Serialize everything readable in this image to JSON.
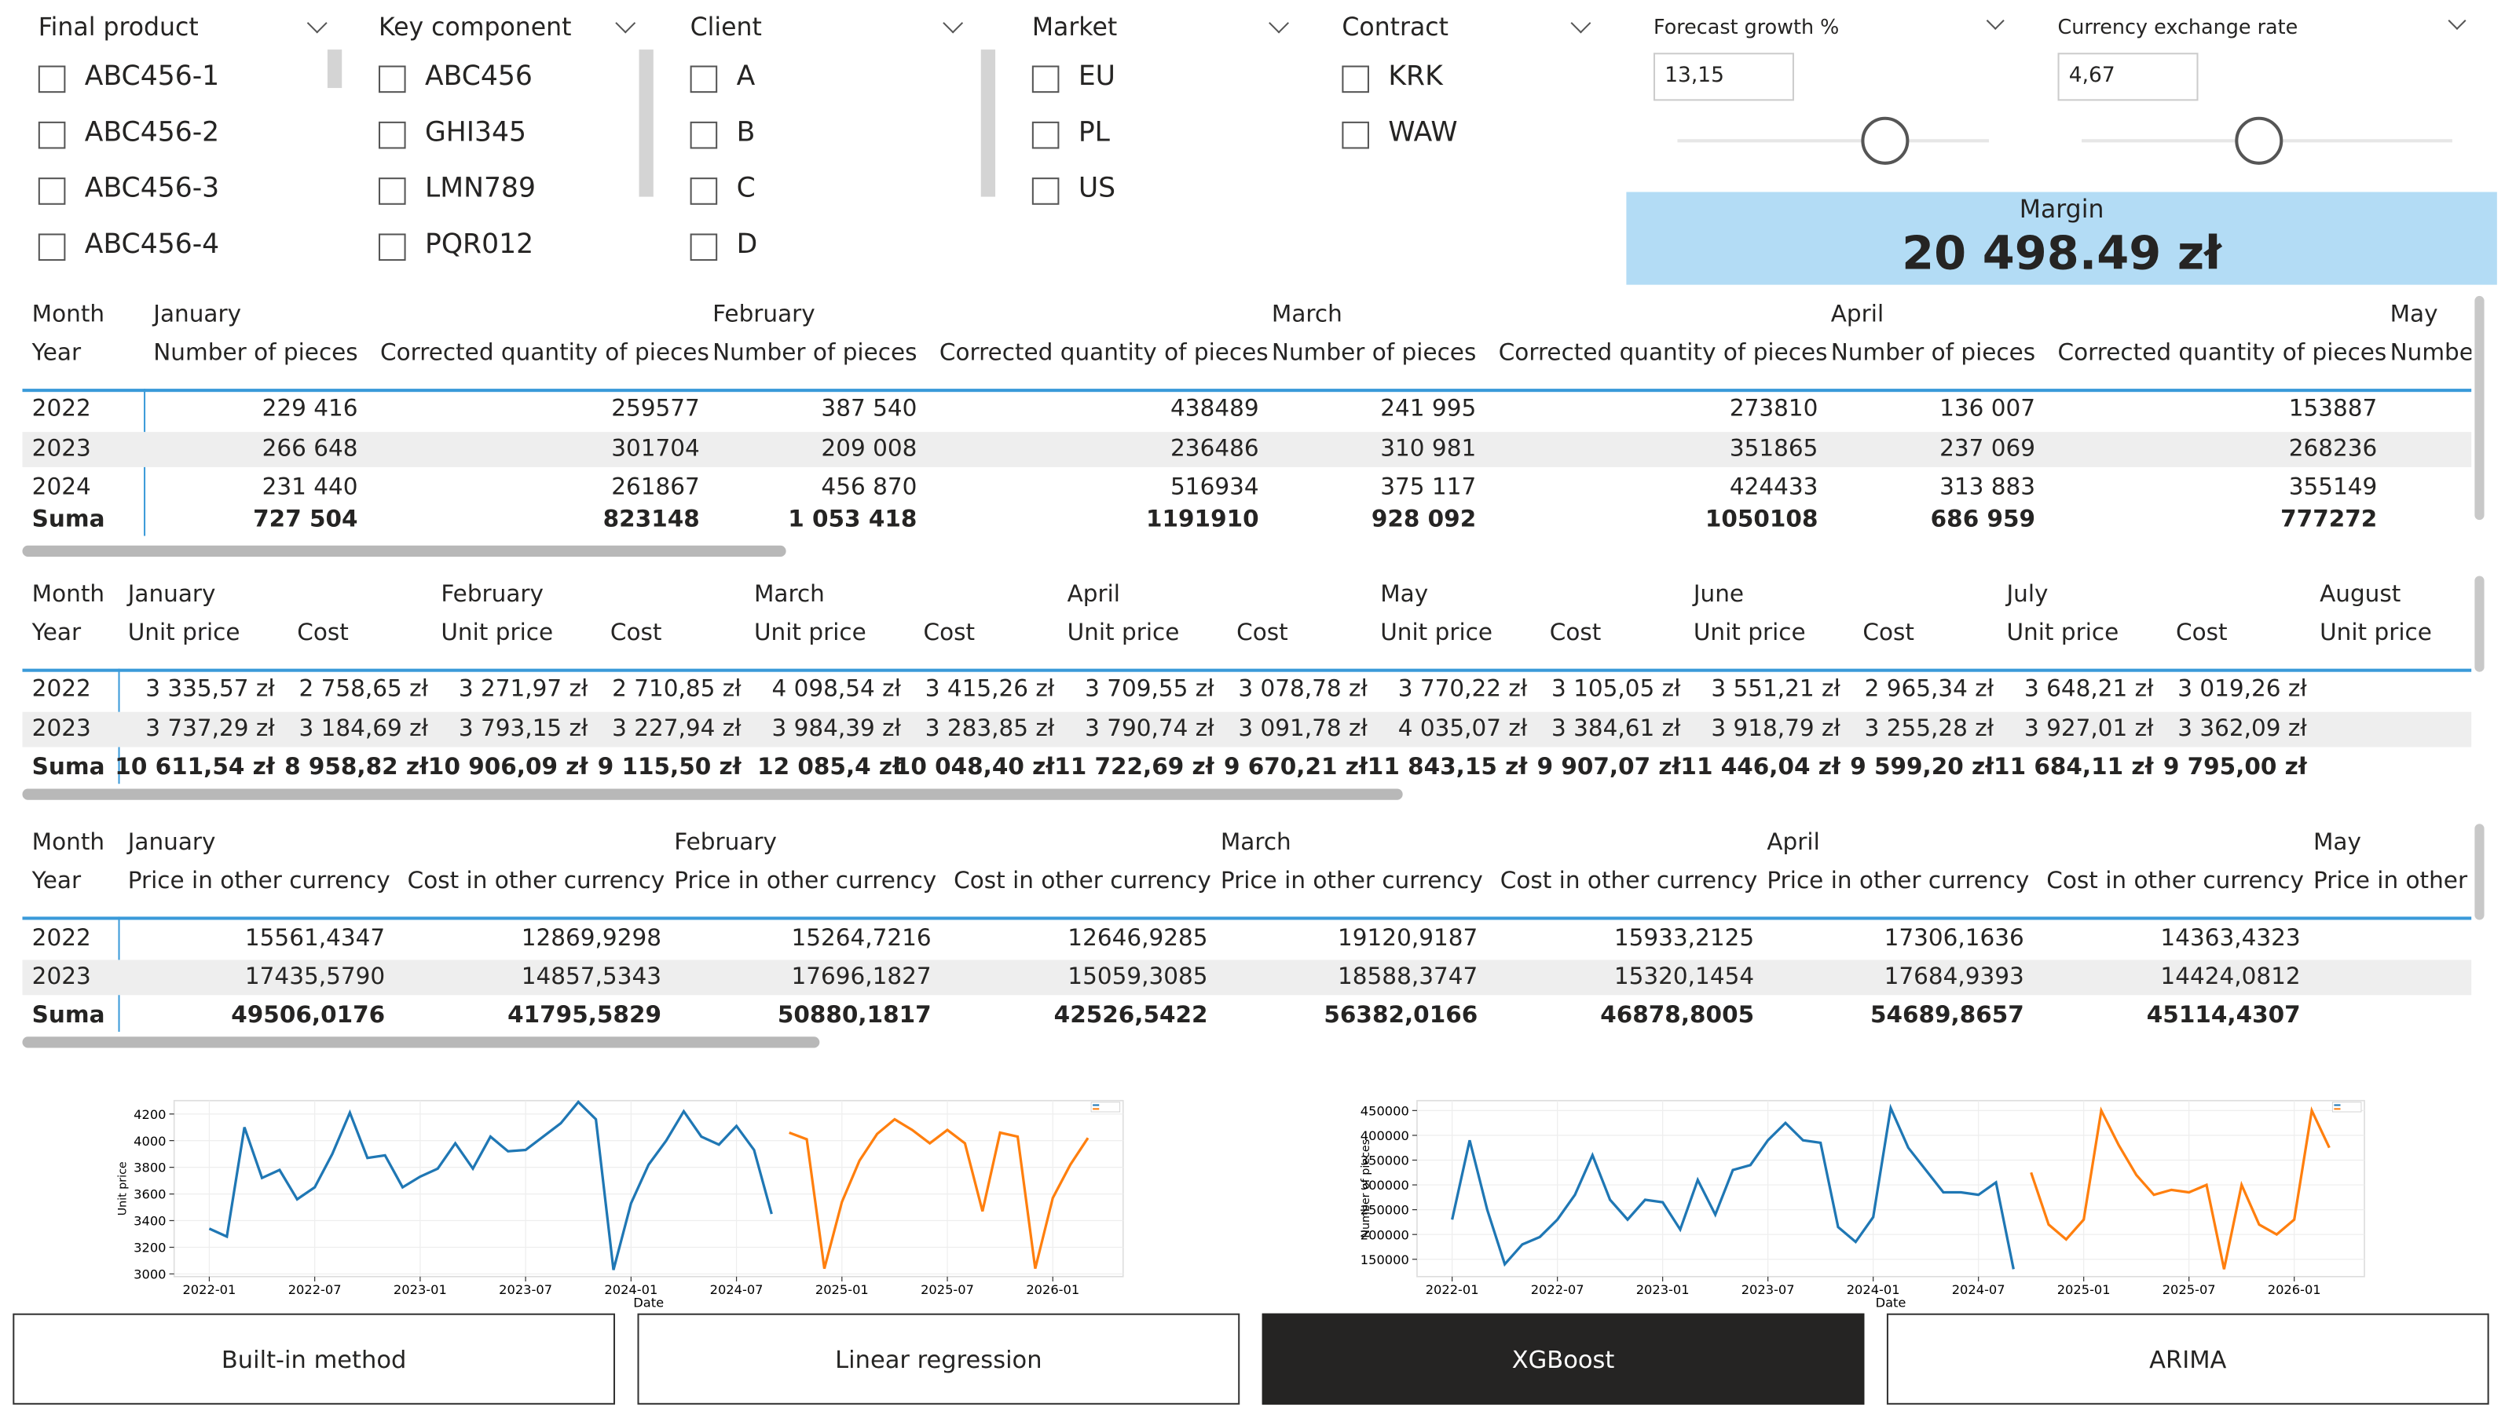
{
  "slicers": [
    {
      "title": "Final product",
      "items": [
        "ABC456-1",
        "ABC456-2",
        "ABC456-3",
        "ABC456-4"
      ]
    },
    {
      "title": "Key component",
      "items": [
        "ABC456",
        "GHI345",
        "LMN789",
        "PQR012"
      ]
    },
    {
      "title": "Client",
      "items": [
        "A",
        "B",
        "C",
        "D"
      ]
    },
    {
      "title": "Market",
      "items": [
        "EU",
        "PL",
        "US"
      ]
    },
    {
      "title": "Contract",
      "items": [
        "KRK",
        "WAW"
      ]
    }
  ],
  "parameters": [
    {
      "title": "Forecast growth %",
      "value": "13,15"
    },
    {
      "title": "Currency exchange rate",
      "value": "4,67"
    }
  ],
  "card": {
    "label": "Margin",
    "value": "20 498.49 zł"
  },
  "tables": [
    {
      "row_header": "Month",
      "col_header": "Year",
      "months": [
        "January",
        "February",
        "March",
        "April",
        "May"
      ],
      "columns": [
        "Number of pieces",
        "Corrected quantity of pieces"
      ],
      "rows": [
        {
          "year": "2022",
          "values": [
            "229 416",
            "259577",
            "387 540",
            "438489",
            "241 995",
            "273810",
            "136 007",
            "153887"
          ]
        },
        {
          "year": "2023",
          "values": [
            "266 648",
            "301704",
            "209 008",
            "236486",
            "310 981",
            "351865",
            "237 069",
            "268236"
          ]
        },
        {
          "year": "2024",
          "values": [
            "231 440",
            "261867",
            "456 870",
            "516934",
            "375 117",
            "424433",
            "313 883",
            "355149"
          ]
        },
        {
          "year": "Suma",
          "values": [
            "727 504",
            "823148",
            "1 053 418",
            "1191910",
            "928 092",
            "1050108",
            "686 959",
            "777272"
          ]
        }
      ]
    },
    {
      "row_header": "Month",
      "col_header": "Year",
      "months": [
        "January",
        "February",
        "March",
        "April",
        "May",
        "June",
        "July",
        "August"
      ],
      "columns": [
        "Unit price",
        "Cost"
      ],
      "rows": [
        {
          "year": "2022",
          "values": [
            "3 335,57 zł",
            "2 758,65 zł",
            "3 271,97 zł",
            "2 710,85 zł",
            "4 098,54 zł",
            "3 415,26 zł",
            "3 709,55 zł",
            "3 078,78 zł",
            "3 770,22 zł",
            "3 105,05 zł",
            "3 551,21 zł",
            "2 965,34 zł",
            "3 648,21 zł",
            "3 019,26 zł"
          ]
        },
        {
          "year": "2023",
          "values": [
            "3 737,29 zł",
            "3 184,69 zł",
            "3 793,15 zł",
            "3 227,94 zł",
            "3 984,39 zł",
            "3 283,85 zł",
            "3 790,74 zł",
            "3 091,78 zł",
            "4 035,07 zł",
            "3 384,61 zł",
            "3 918,79 zł",
            "3 255,28 zł",
            "3 927,01 zł",
            "3 362,09 zł"
          ]
        },
        {
          "year": "Suma",
          "values": [
            "10 611,54 zł",
            "8 958,82 zł",
            "10 906,09 zł",
            "9 115,50 zł",
            "12 085,4 zł",
            "10 048,40 zł",
            "11 722,69 zł",
            "9 670,21 zł",
            "11 843,15 zł",
            "9 907,07 zł",
            "11 446,04 zł",
            "9 599,20 zł",
            "11 684,11 zł",
            "9 795,00 zł"
          ]
        }
      ]
    },
    {
      "row_header": "Month",
      "col_header": "Year",
      "months": [
        "January",
        "February",
        "March",
        "April",
        "May"
      ],
      "columns": [
        "Price in other currency",
        "Cost in other currency"
      ],
      "rows": [
        {
          "year": "2022",
          "values": [
            "15561,4347",
            "12869,9298",
            "15264,7216",
            "12646,9285",
            "19120,9187",
            "15933,2125",
            "17306,1636",
            "14363,4323"
          ]
        },
        {
          "year": "2023",
          "values": [
            "17435,5790",
            "14857,5343",
            "17696,1827",
            "15059,3085",
            "18588,3747",
            "15320,1454",
            "17684,9393",
            "14424,0812"
          ]
        },
        {
          "year": "Suma",
          "values": [
            "49506,0176",
            "41795,5829",
            "50880,1817",
            "42526,5422",
            "56382,0166",
            "46878,8005",
            "54689,8657",
            "45114,4307"
          ]
        }
      ]
    }
  ],
  "chart_data": [
    {
      "type": "line",
      "x_label": "Date",
      "y_label": "Unit price",
      "grid": true,
      "x": [
        "2022-01",
        "2022-02",
        "2022-03",
        "2022-04",
        "2022-05",
        "2022-06",
        "2022-07",
        "2022-08",
        "2022-09",
        "2022-10",
        "2022-11",
        "2022-12",
        "2023-01",
        "2023-02",
        "2023-03",
        "2023-04",
        "2023-05",
        "2023-06",
        "2023-07",
        "2023-08",
        "2023-09",
        "2023-10",
        "2023-11",
        "2023-12",
        "2024-01",
        "2024-02",
        "2024-03",
        "2024-04",
        "2024-05",
        "2024-06",
        "2024-07",
        "2024-08",
        "2024-09",
        "2024-10",
        "2024-11",
        "2024-12",
        "2025-01",
        "2025-02",
        "2025-03",
        "2025-04",
        "2025-05",
        "2025-06",
        "2025-07",
        "2025-08",
        "2025-09",
        "2025-10",
        "2025-11",
        "2025-12",
        "2026-01",
        "2026-02",
        "2026-03"
      ],
      "xlim": [
        "2021-11",
        "2026-05"
      ],
      "xticks": [
        "2022-01",
        "2022-07",
        "2023-01",
        "2023-07",
        "2024-01",
        "2024-07",
        "2025-01",
        "2025-07",
        "2026-01"
      ],
      "ylim": [
        2980,
        4300
      ],
      "yticks": [
        3000,
        3200,
        3400,
        3600,
        3800,
        4000,
        4200
      ],
      "series": [
        {
          "color": "#1f77b4",
          "values": [
            3340,
            3280,
            4100,
            3720,
            3780,
            3560,
            3650,
            3900,
            4210,
            3870,
            3890,
            3650,
            3730,
            3790,
            3980,
            3790,
            4030,
            3920,
            3930,
            4030,
            4130,
            4290,
            4160,
            3030,
            3530,
            3820,
            4000,
            4220,
            4030,
            3970,
            4110,
            3930,
            3450,
            null,
            null,
            null,
            null,
            null,
            null,
            null,
            null,
            null,
            null,
            null,
            null,
            null,
            null,
            null,
            null,
            null,
            null
          ]
        },
        {
          "color": "#ff7f0e",
          "values": [
            null,
            null,
            null,
            null,
            null,
            null,
            null,
            null,
            null,
            null,
            null,
            null,
            null,
            null,
            null,
            null,
            null,
            null,
            null,
            null,
            null,
            null,
            null,
            null,
            null,
            null,
            null,
            null,
            null,
            null,
            null,
            null,
            null,
            4060,
            4010,
            3040,
            3540,
            3850,
            4050,
            4160,
            4080,
            3980,
            4080,
            3980,
            3470,
            4060,
            4030,
            3040,
            3570,
            3820,
            4020
          ]
        }
      ]
    },
    {
      "type": "line",
      "x_label": "Date",
      "y_label": "Number of pieces",
      "grid": true,
      "x": [
        "2022-01",
        "2022-02",
        "2022-03",
        "2022-04",
        "2022-05",
        "2022-06",
        "2022-07",
        "2022-08",
        "2022-09",
        "2022-10",
        "2022-11",
        "2022-12",
        "2023-01",
        "2023-02",
        "2023-03",
        "2023-04",
        "2023-05",
        "2023-06",
        "2023-07",
        "2023-08",
        "2023-09",
        "2023-10",
        "2023-11",
        "2023-12",
        "2024-01",
        "2024-02",
        "2024-03",
        "2024-04",
        "2024-05",
        "2024-06",
        "2024-07",
        "2024-08",
        "2024-09",
        "2024-10",
        "2024-11",
        "2024-12",
        "2025-01",
        "2025-02",
        "2025-03",
        "2025-04",
        "2025-05",
        "2025-06",
        "2025-07",
        "2025-08",
        "2025-09",
        "2025-10",
        "2025-11",
        "2025-12",
        "2026-01",
        "2026-02",
        "2026-03"
      ],
      "xlim": [
        "2021-11",
        "2026-05"
      ],
      "xticks": [
        "2022-01",
        "2022-07",
        "2023-01",
        "2023-07",
        "2024-01",
        "2024-07",
        "2025-01",
        "2025-07",
        "2026-01"
      ],
      "ylim": [
        115000,
        470000
      ],
      "yticks": [
        150000,
        200000,
        250000,
        300000,
        350000,
        400000,
        450000
      ],
      "series": [
        {
          "color": "#1f77b4",
          "values": [
            230000,
            390000,
            250000,
            140000,
            180000,
            195000,
            230000,
            280000,
            360000,
            270000,
            230000,
            270000,
            265000,
            210000,
            310000,
            240000,
            330000,
            340000,
            390000,
            425000,
            390000,
            385000,
            215000,
            185000,
            235000,
            455000,
            375000,
            330000,
            285000,
            285000,
            280000,
            305000,
            130000,
            null,
            null,
            null,
            null,
            null,
            null,
            null,
            null,
            null,
            null,
            null,
            null,
            null,
            null,
            null,
            null,
            null,
            null
          ]
        },
        {
          "color": "#ff7f0e",
          "values": [
            null,
            null,
            null,
            null,
            null,
            null,
            null,
            null,
            null,
            null,
            null,
            null,
            null,
            null,
            null,
            null,
            null,
            null,
            null,
            null,
            null,
            null,
            null,
            null,
            null,
            null,
            null,
            null,
            null,
            null,
            null,
            null,
            null,
            325000,
            220000,
            190000,
            230000,
            450000,
            380000,
            320000,
            280000,
            290000,
            285000,
            300000,
            130000,
            300000,
            220000,
            200000,
            230000,
            450000,
            375000
          ]
        }
      ]
    }
  ],
  "buttons": [
    "Built-in method",
    "Linear regression",
    "XGBoost",
    "ARIMA"
  ]
}
